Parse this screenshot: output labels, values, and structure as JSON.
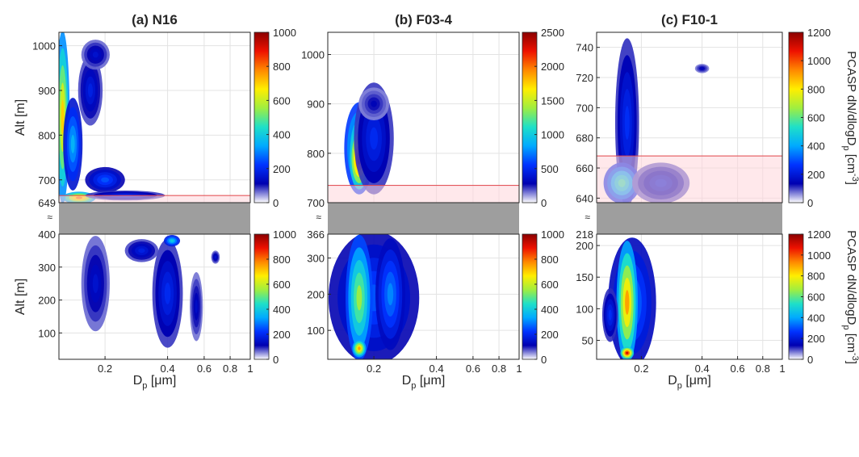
{
  "figure": {
    "colorbar_label": "PCASP dN/dlogD",
    "colorbar_label_sub": "p",
    "colorbar_label_units": "[cm",
    "colorbar_label_sup": "-3",
    "break_mark": "≈",
    "colormap": [
      "#ffffff",
      "#0000b0",
      "#0033ff",
      "#00aaff",
      "#1fe0c8",
      "#a0ee40",
      "#ffee00",
      "#ff8800",
      "#ee1100",
      "#8b0000"
    ],
    "cloud_base_band_color": "#ffd6da",
    "cloud_base_edge_color": "#e0454a",
    "gap_color": "#9e9e9e"
  },
  "chart_data": [
    {
      "type": "heatmap",
      "title": "(a) N16",
      "xlabel": "D",
      "xlabel_sub": "p",
      "xlabel_units": " [μm]",
      "ylabel": "Alt [m]",
      "xscale": "log",
      "xlim": [
        0.12,
        1.0
      ],
      "xticks": [
        0.2,
        0.4,
        0.6,
        0.8,
        1
      ],
      "xtick_labels": [
        "0.2",
        "0.4",
        "0.6",
        "0.8",
        "1"
      ],
      "upper": {
        "ylim": [
          649,
          1030
        ],
        "yticks": [
          649,
          700,
          800,
          900,
          1000
        ],
        "ytick_labels": [
          "649",
          "700",
          "800",
          "900",
          "1000"
        ],
        "cloud_base_band": [
          649,
          665
        ],
        "colorbar": {
          "ticks": [
            0,
            200,
            400,
            600,
            800,
            1000
          ],
          "tick_labels": [
            "0",
            "200",
            "400",
            "600",
            "800",
            "1000"
          ],
          "max": 1000
        },
        "blobs": [
          {
            "x": 0.125,
            "y": 840,
            "w": 0.015,
            "h": 380,
            "v": 700
          },
          {
            "x": 0.14,
            "y": 780,
            "w": 0.025,
            "h": 200,
            "v": 350
          },
          {
            "x": 0.15,
            "y": 660,
            "w": 0.05,
            "h": 20,
            "v": 800
          },
          {
            "x": 0.2,
            "y": 700,
            "w": 0.08,
            "h": 50,
            "v": 250
          },
          {
            "x": 0.25,
            "y": 665,
            "w": 0.2,
            "h": 15,
            "v": 200
          },
          {
            "x": 0.17,
            "y": 900,
            "w": 0.04,
            "h": 150,
            "v": 180
          },
          {
            "x": 0.18,
            "y": 980,
            "w": 0.05,
            "h": 60,
            "v": 150
          }
        ]
      },
      "lower": {
        "ylim": [
          20,
          400
        ],
        "yticks": [
          100,
          200,
          300,
          400
        ],
        "ytick_labels": [
          "100",
          "200",
          "300",
          "400"
        ],
        "colorbar": {
          "ticks": [
            0,
            200,
            400,
            600,
            800,
            1000
          ],
          "tick_labels": [
            "0",
            "200",
            "400",
            "600",
            "800",
            "1000"
          ],
          "max": 1000
        },
        "blobs": [
          {
            "x": 0.4,
            "y": 220,
            "w": 0.12,
            "h": 320,
            "v": 200
          },
          {
            "x": 0.42,
            "y": 380,
            "w": 0.06,
            "h": 25,
            "v": 400
          },
          {
            "x": 0.3,
            "y": 350,
            "w": 0.1,
            "h": 60,
            "v": 180
          },
          {
            "x": 0.18,
            "y": 250,
            "w": 0.05,
            "h": 280,
            "v": 150
          },
          {
            "x": 0.55,
            "y": 180,
            "w": 0.06,
            "h": 200,
            "v": 140
          },
          {
            "x": 0.68,
            "y": 330,
            "w": 0.04,
            "h": 30,
            "v": 150
          }
        ]
      }
    },
    {
      "type": "heatmap",
      "title": "(b) F03-4",
      "xlabel": "D",
      "xlabel_sub": "p",
      "xlabel_units": " [μm]",
      "ylabel": "",
      "xscale": "log",
      "xlim": [
        0.12,
        1.0
      ],
      "xticks": [
        0.2,
        0.4,
        0.6,
        0.8,
        1
      ],
      "xtick_labels": [
        "0.2",
        "0.4",
        "0.6",
        "0.8",
        "1"
      ],
      "upper": {
        "ylim": [
          700,
          1045
        ],
        "yticks": [
          700,
          800,
          900,
          1000
        ],
        "ytick_labels": [
          "700",
          "800",
          "900",
          "1000"
        ],
        "cloud_base_band": [
          700,
          735
        ],
        "colorbar": {
          "ticks": [
            0,
            500,
            1000,
            1500,
            2000,
            2500
          ],
          "tick_labels": [
            "0",
            "500",
            "1000",
            "1500",
            "2000",
            "2500"
          ],
          "max": 2500
        },
        "blobs": [
          {
            "x": 0.17,
            "y": 810,
            "w": 0.05,
            "h": 180,
            "v": 1300
          },
          {
            "x": 0.17,
            "y": 790,
            "w": 0.03,
            "h": 120,
            "v": 2300
          },
          {
            "x": 0.2,
            "y": 830,
            "w": 0.08,
            "h": 220,
            "v": 500
          },
          {
            "x": 0.2,
            "y": 900,
            "w": 0.06,
            "h": 60,
            "v": 300
          }
        ]
      },
      "lower": {
        "ylim": [
          20,
          366
        ],
        "yticks": [
          100,
          200,
          300,
          366
        ],
        "ytick_labels": [
          "100",
          "200",
          "300",
          "366"
        ],
        "colorbar": {
          "ticks": [
            0,
            200,
            400,
            600,
            800,
            1000
          ],
          "tick_labels": [
            "0",
            "200",
            "400",
            "600",
            "800",
            "1000"
          ],
          "max": 1000
        },
        "blobs": [
          {
            "x": 0.2,
            "y": 190,
            "w": 0.18,
            "h": 360,
            "v": 250
          },
          {
            "x": 0.17,
            "y": 190,
            "w": 0.045,
            "h": 340,
            "v": 550
          },
          {
            "x": 0.17,
            "y": 50,
            "w": 0.02,
            "h": 40,
            "v": 750
          },
          {
            "x": 0.24,
            "y": 200,
            "w": 0.07,
            "h": 300,
            "v": 300
          }
        ]
      }
    },
    {
      "type": "heatmap",
      "title": "(c) F10-1",
      "xlabel": "D",
      "xlabel_sub": "p",
      "xlabel_units": " [μm]",
      "ylabel": "",
      "xscale": "log",
      "xlim": [
        0.12,
        1.0
      ],
      "xticks": [
        0.2,
        0.4,
        0.6,
        0.8,
        1
      ],
      "xtick_labels": [
        "0.2",
        "0.4",
        "0.6",
        "0.8",
        "1"
      ],
      "upper": {
        "ylim": [
          637,
          750
        ],
        "yticks": [
          640,
          660,
          680,
          700,
          720,
          740
        ],
        "ytick_labels": [
          "640",
          "660",
          "680",
          "700",
          "720",
          "740"
        ],
        "cloud_base_band": [
          637,
          668
        ],
        "colorbar": {
          "ticks": [
            0,
            200,
            400,
            600,
            800,
            1000,
            1200
          ],
          "tick_labels": [
            "0",
            "200",
            "400",
            "600",
            "800",
            "1000",
            "1200"
          ],
          "max": 1200
        },
        "blobs": [
          {
            "x": 0.17,
            "y": 690,
            "w": 0.04,
            "h": 110,
            "v": 250
          },
          {
            "x": 0.16,
            "y": 650,
            "w": 0.06,
            "h": 25,
            "v": 550
          },
          {
            "x": 0.25,
            "y": 650,
            "w": 0.15,
            "h": 25,
            "v": 200
          },
          {
            "x": 0.4,
            "y": 726,
            "w": 0.05,
            "h": 4,
            "v": 150
          }
        ]
      },
      "lower": {
        "ylim": [
          20,
          218
        ],
        "yticks": [
          50,
          100,
          150,
          200,
          218
        ],
        "ytick_labels": [
          "50",
          "100",
          "150",
          "200",
          "218"
        ],
        "colorbar": {
          "ticks": [
            0,
            200,
            400,
            600,
            800,
            1000,
            1200
          ],
          "tick_labels": [
            "0",
            "200",
            "400",
            "600",
            "800",
            "1000",
            "1200"
          ],
          "max": 1200
        },
        "blobs": [
          {
            "x": 0.18,
            "y": 110,
            "w": 0.09,
            "h": 200,
            "v": 350
          },
          {
            "x": 0.17,
            "y": 110,
            "w": 0.035,
            "h": 190,
            "v": 900
          },
          {
            "x": 0.17,
            "y": 30,
            "w": 0.02,
            "h": 15,
            "v": 1100
          },
          {
            "x": 0.14,
            "y": 90,
            "w": 0.02,
            "h": 80,
            "v": 250
          }
        ]
      }
    }
  ]
}
